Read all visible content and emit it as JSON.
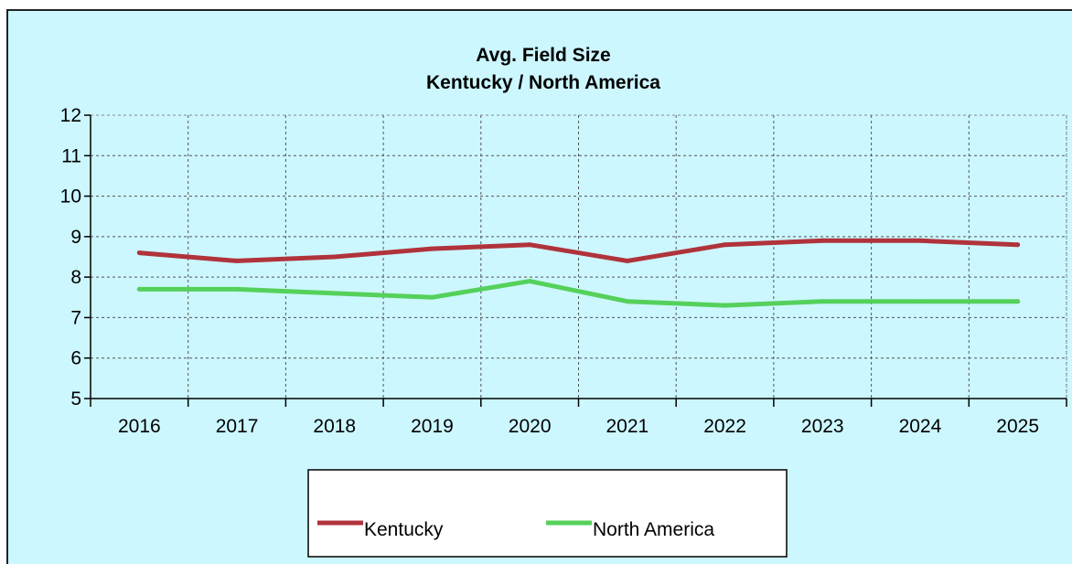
{
  "chart_data": {
    "type": "line",
    "title": "Avg. Field Size",
    "subtitle": "Kentucky / North America",
    "categories": [
      "2016",
      "2017",
      "2018",
      "2019",
      "2020",
      "2021",
      "2022",
      "2023",
      "2024",
      "2025"
    ],
    "series": [
      {
        "name": "Kentucky",
        "color": "#b0333c",
        "values": [
          8.6,
          8.4,
          8.5,
          8.7,
          8.8,
          8.4,
          8.8,
          8.9,
          8.9,
          8.8
        ]
      },
      {
        "name": "North America",
        "color": "#55d15b",
        "values": [
          7.7,
          7.7,
          7.6,
          7.5,
          7.9,
          7.4,
          7.3,
          7.4,
          7.4,
          7.4
        ]
      }
    ],
    "ylim": [
      5,
      12
    ],
    "yticks": [
      "5",
      "6",
      "7",
      "8",
      "9",
      "10",
      "11",
      "12"
    ],
    "grid": true,
    "legend_position": "bottom",
    "background_color": "#ccf7ff"
  }
}
